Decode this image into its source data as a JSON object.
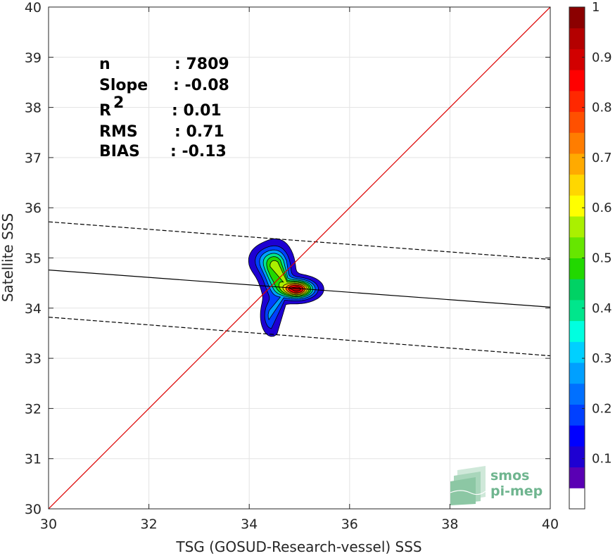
{
  "chart_data": {
    "type": "heatmap",
    "xlabel": "TSG (GOSUD-Research-vessel) SSS",
    "ylabel": "Satellite SSS",
    "xlim": [
      30,
      40
    ],
    "ylim": [
      30,
      40
    ],
    "xticks": [
      "30",
      "32",
      "34",
      "36",
      "38",
      "40"
    ],
    "yticks": [
      "30",
      "31",
      "32",
      "33",
      "34",
      "35",
      "36",
      "37",
      "38",
      "39",
      "40"
    ],
    "grid": true,
    "stats": [
      {
        "label": "n",
        "value": ": 7809"
      },
      {
        "label": "Slope",
        "value": ": -0.08"
      },
      {
        "label": "R",
        "sup": "2",
        "value": ": 0.01"
      },
      {
        "label": "RMS",
        "value": ": 0.71"
      },
      {
        "label": "BIAS",
        "value": ": -0.13"
      }
    ],
    "identity_line": {
      "color": "#dd0000",
      "x": [
        30,
        40
      ],
      "y": [
        30,
        40
      ]
    },
    "fit_line": {
      "color": "#000000",
      "x": [
        30,
        40
      ],
      "y": [
        34.76,
        34.02
      ]
    },
    "upper_bound": {
      "color": "#000000",
      "style": "dashed",
      "x": [
        30,
        40
      ],
      "y": [
        35.72,
        34.97
      ]
    },
    "lower_bound": {
      "color": "#000000",
      "style": "dashed",
      "x": [
        30,
        40
      ],
      "y": [
        33.82,
        33.05
      ]
    },
    "density_peak": {
      "x": 34.95,
      "y": 34.38,
      "value": 1
    },
    "density_levels": [
      0.05,
      0.15,
      0.25,
      0.35,
      0.45,
      0.55,
      0.65,
      0.75,
      0.85,
      0.95
    ],
    "colorbar": {
      "range": [
        0,
        1
      ],
      "ticks": [
        "0.1",
        "0.2",
        "0.3",
        "0.4",
        "0.5",
        "0.6",
        "0.7",
        "0.8",
        "0.9",
        "1"
      ],
      "colors": [
        "#ffffff",
        "#5a00b4",
        "#1e00d2",
        "#0000ff",
        "#0040ff",
        "#0070ff",
        "#00a0ff",
        "#00d0ff",
        "#00ffe0",
        "#00e68c",
        "#00d264",
        "#22d800",
        "#66e600",
        "#aaf000",
        "#ffff00",
        "#ffd700",
        "#ffaa00",
        "#ff7d00",
        "#ff5000",
        "#ff2800",
        "#ff0000",
        "#d20000",
        "#b40000",
        "#8b0000"
      ]
    }
  },
  "logo": {
    "line1": "smos",
    "line2": "pi-mep"
  }
}
